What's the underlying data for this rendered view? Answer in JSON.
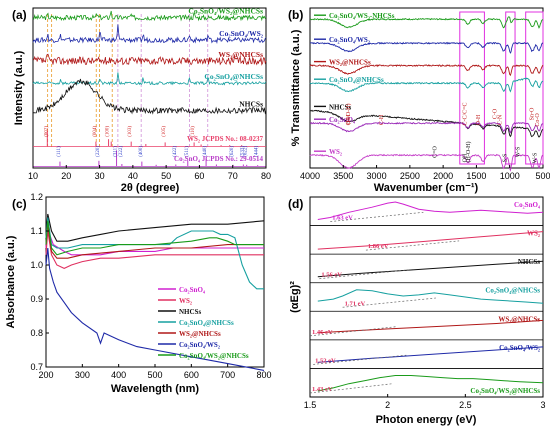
{
  "chart_data": [
    {
      "id": "a",
      "panel_label": "(a)",
      "type": "line",
      "xlabel": "2θ (degree)",
      "ylabel": "Intensity (a.u.)",
      "xlim": [
        10,
        80
      ],
      "xticks": [
        10,
        20,
        30,
        40,
        50,
        60,
        70,
        80
      ],
      "grid": false,
      "series": [
        {
          "name": "Co₂SnO₄/WS₂@NHCSs",
          "color": "#1a9b1a",
          "baseline": 0.94,
          "amp": 0.05,
          "peaks": [
            [
              14.4,
              0.2
            ],
            [
              29.2,
              0.25
            ],
            [
              33.4,
              0.45
            ],
            [
              39.5,
              0.2
            ],
            [
              58.4,
              0.25
            ]
          ]
        },
        {
          "name": "Co₂SnO₄/WS₂",
          "color": "#1f2aa8",
          "baseline": 0.8,
          "amp": 0.05,
          "peaks": [
            [
              14.4,
              0.35
            ],
            [
              18.3,
              0.3
            ],
            [
              30.1,
              0.6
            ],
            [
              35.5,
              1.0
            ],
            [
              43.1,
              0.35
            ],
            [
              57.0,
              0.35
            ],
            [
              62.6,
              0.35
            ]
          ]
        },
        {
          "name": "WS₂@NHCSs",
          "color": "#b01818",
          "baseline": 0.67,
          "amp": 0.08,
          "peaks": [
            [
              14.4,
              0.35
            ],
            [
              33.5,
              0.25
            ],
            [
              39.5,
              0.2
            ],
            [
              58.4,
              0.2
            ]
          ]
        },
        {
          "name": "Co₂SnO₄@NHCSs",
          "color": "#16a0a0",
          "baseline": 0.53,
          "amp": 0.03,
          "peaks": [
            [
              18.3,
              0.3
            ],
            [
              30.1,
              0.35
            ],
            [
              35.5,
              0.7
            ],
            [
              43.1,
              0.35
            ],
            [
              57.0,
              0.3
            ],
            [
              62.6,
              0.35
            ]
          ]
        },
        {
          "name": "NHCSs",
          "color": "#111111",
          "baseline": 0.36,
          "amp": 0.06,
          "hump": [
            24.5,
            6.5,
            0.18
          ]
        },
        {
          "name": "WS₂ JCPDS No.: 08-0237",
          "color": "#e8406a",
          "baseline": 0.22,
          "amp": 0.0
        },
        {
          "name": "Co₂SnO₄ JCPDS No.: 29-0514",
          "color": "#b83cc8",
          "baseline": 0.06,
          "amp": 0.0
        }
      ],
      "reference_WS2": {
        "color": "#e8406a",
        "peaks": [
          [
            14.3,
            1.0
          ],
          [
            28.9,
            0.3
          ],
          [
            32.7,
            0.45
          ],
          [
            33.5,
            0.3
          ],
          [
            39.5,
            0.3
          ],
          [
            43.9,
            0.15
          ],
          [
            49.7,
            0.25
          ],
          [
            58.4,
            0.25
          ],
          [
            60.5,
            0.12
          ],
          [
            66.5,
            0.08
          ],
          [
            69.1,
            0.08
          ],
          [
            72.7,
            0.08
          ]
        ],
        "labels": [
          {
            "x": 14.3,
            "text": "(002)"
          },
          {
            "x": 28.9,
            "text": "(004)"
          },
          {
            "x": 32.7,
            "text": "(100)"
          },
          {
            "x": 39.5,
            "text": "(103)"
          },
          {
            "x": 49.7,
            "text": "(105)"
          },
          {
            "x": 58.4,
            "text": "(110)"
          }
        ]
      },
      "reference_Co2SnO4": {
        "color": "#b83cc8",
        "peaks": [
          [
            18.1,
            0.3
          ],
          [
            29.8,
            0.35
          ],
          [
            35.1,
            1.0
          ],
          [
            36.7,
            0.15
          ],
          [
            42.7,
            0.3
          ],
          [
            47.0,
            0.1
          ],
          [
            52.9,
            0.12
          ],
          [
            56.5,
            0.35
          ],
          [
            62.0,
            0.45
          ],
          [
            65.1,
            0.12
          ],
          [
            70.1,
            0.1
          ],
          [
            73.2,
            0.12
          ],
          [
            74.2,
            0.1
          ],
          [
            77.5,
            0.08
          ]
        ],
        "labels": [
          {
            "x": 18.1,
            "text": "(111)"
          },
          {
            "x": 29.8,
            "text": "(220)"
          },
          {
            "x": 35.1,
            "text": "(311)"
          },
          {
            "x": 36.7,
            "text": "(222)"
          },
          {
            "x": 42.7,
            "text": "(400)"
          },
          {
            "x": 52.9,
            "text": "(422)"
          },
          {
            "x": 56.5,
            "text": "(511)"
          },
          {
            "x": 62.0,
            "text": "(440)"
          },
          {
            "x": 70.1,
            "text": "(620)"
          },
          {
            "x": 73.2,
            "text": "(533)"
          },
          {
            "x": 74.2,
            "text": "(622)"
          },
          {
            "x": 77.5,
            "text": "(444)"
          }
        ]
      },
      "guide_lines": [
        {
          "x": 14.4,
          "color": "#e89a2a"
        },
        {
          "x": 15.6,
          "color": "#e89a2a"
        },
        {
          "x": 29.0,
          "color": "#e89a2a"
        },
        {
          "x": 30.0,
          "color": "#e89a2a"
        },
        {
          "x": 33.8,
          "color": "#e89a2a"
        },
        {
          "x": 35.5,
          "color": "#d090d8"
        },
        {
          "x": 42.5,
          "color": "#d090d8"
        },
        {
          "x": 57.0,
          "color": "#d090d8"
        },
        {
          "x": 62.5,
          "color": "#d090d8"
        }
      ]
    },
    {
      "id": "b",
      "panel_label": "(b)",
      "type": "line",
      "xlabel": "Wavenumber (cm⁻¹)",
      "ylabel": "% Transmittance (a.u.)",
      "xlim": [
        4000,
        500
      ],
      "xticks": [
        4000,
        3500,
        3000,
        2500,
        2000,
        1500,
        1000,
        500
      ],
      "grid": false,
      "series": [
        {
          "name": "Co₂SnO₄/WS₂-NHCSs",
          "color": "#1a9b1a",
          "baseline": 0.93
        },
        {
          "name": "Co₂SnO₄/WS₂",
          "color": "#1f2aa8",
          "baseline": 0.78
        },
        {
          "name": "WS₂@NHCSs",
          "color": "#b01818",
          "baseline": 0.64
        },
        {
          "name": "Co₂SnO₄@NHCSs",
          "color": "#16a0a0",
          "baseline": 0.53
        },
        {
          "name": "NHCSs",
          "color": "#111111",
          "baseline": 0.36
        },
        {
          "name": "Co₂SnO₄",
          "color": "#9a2ab8",
          "baseline": 0.28
        },
        {
          "name": "WS₂",
          "color": "#c43cc8",
          "baseline": 0.08
        }
      ],
      "annotations": [
        {
          "text": "O-H",
          "x": 3400,
          "color": "#c02020"
        },
        {
          "text": "(H-O-H)",
          "x": 3400,
          "color": "#c02020"
        },
        {
          "text": "C-H",
          "x": 2900,
          "color": "#c02020"
        },
        {
          "text": "C-C/C=C",
          "x": 1650,
          "color": "#c02020"
        },
        {
          "text": "O-H",
          "x": 1450,
          "color": "#c02020"
        },
        {
          "text": "C-O",
          "x": 1200,
          "color": "#c02020"
        },
        {
          "text": "C-N",
          "x": 1120,
          "color": "#c02020"
        },
        {
          "text": "Sn-O",
          "x": 640,
          "color": "#c02020"
        },
        {
          "text": "Co-O",
          "x": 560,
          "color": "#c02020"
        },
        {
          "text": "C=O",
          "x": 2100,
          "color": "#111111"
        },
        {
          "text": "OH",
          "x": 1650,
          "color": "#111111"
        },
        {
          "text": "(H-O-H)",
          "x": 1600,
          "color": "#111111"
        },
        {
          "text": "S-S",
          "x": 1050,
          "color": "#111111"
        },
        {
          "text": "W-S",
          "x": 850,
          "color": "#111111"
        },
        {
          "text": "W-S",
          "x": 600,
          "color": "#111111"
        }
      ],
      "highlight_boxes": [
        {
          "x0": 1750,
          "x1": 1380,
          "color": "#e030e0"
        },
        {
          "x0": 1060,
          "x1": 920,
          "color": "#e030e0"
        },
        {
          "x0": 760,
          "x1": 500,
          "color": "#e030e0"
        }
      ]
    },
    {
      "id": "c",
      "panel_label": "(c)",
      "type": "line",
      "xlabel": "Wavelength (nm)",
      "ylabel": "Absorbance (a.u.)",
      "xlim": [
        200,
        800
      ],
      "ylim": [
        0.7,
        1.2
      ],
      "xticks": [
        200,
        300,
        400,
        500,
        600,
        700,
        800
      ],
      "yticks": [
        0.7,
        0.8,
        0.9,
        1.0,
        1.1,
        1.2
      ],
      "grid": false,
      "legend_position": "bottom-right",
      "series": [
        {
          "name": "Co₂SnO₄",
          "color": "#d020d0",
          "x": [
            200,
            205,
            210,
            220,
            235,
            250,
            270,
            300,
            350,
            400,
            450,
            500,
            550,
            600,
            650,
            700,
            800
          ],
          "y": [
            1.05,
            1.14,
            1.09,
            1.06,
            1.05,
            1.04,
            1.03,
            1.03,
            1.03,
            1.04,
            1.04,
            1.04,
            1.05,
            1.05,
            1.05,
            1.05,
            1.05
          ]
        },
        {
          "name": "WS₂",
          "color": "#e03060",
          "x": [
            200,
            205,
            215,
            230,
            250,
            270,
            300,
            350,
            400,
            500,
            600,
            700,
            800
          ],
          "y": [
            1.03,
            1.1,
            1.03,
            1.0,
            0.99,
            1.0,
            1.01,
            1.02,
            1.02,
            1.03,
            1.03,
            1.03,
            1.03
          ]
        },
        {
          "name": "NHCSs",
          "color": "#111111",
          "x": [
            200,
            205,
            215,
            230,
            260,
            300,
            350,
            400,
            500,
            600,
            700,
            800
          ],
          "y": [
            1.09,
            1.15,
            1.1,
            1.07,
            1.07,
            1.08,
            1.09,
            1.1,
            1.11,
            1.12,
            1.12,
            1.13
          ]
        },
        {
          "name": "Co₂SnO₄@NHCSs",
          "color": "#16a0a0",
          "x": [
            200,
            205,
            215,
            230,
            260,
            300,
            400,
            500,
            540,
            560,
            600,
            640,
            660,
            680,
            700,
            720,
            740,
            760,
            780,
            800
          ],
          "y": [
            1.08,
            1.14,
            1.06,
            1.05,
            1.05,
            1.06,
            1.06,
            1.06,
            1.06,
            1.08,
            1.1,
            1.1,
            1.1,
            1.09,
            1.09,
            1.08,
            1.0,
            0.95,
            0.93,
            0.93
          ]
        },
        {
          "name": "WS₂@NHCSs",
          "color": "#b01818",
          "x": [
            200,
            205,
            215,
            230,
            260,
            300,
            400,
            500,
            600,
            700,
            800
          ],
          "y": [
            1.06,
            1.12,
            1.04,
            1.02,
            1.02,
            1.03,
            1.04,
            1.05,
            1.05,
            1.06,
            1.06
          ]
        },
        {
          "name": "Co₂SnO₄/WS₂",
          "color": "#1f2aa8",
          "x": [
            200,
            205,
            210,
            220,
            230,
            250,
            270,
            300,
            340,
            350,
            360,
            400,
            450,
            500,
            600,
            700,
            800
          ],
          "y": [
            1.0,
            1.05,
            0.99,
            0.95,
            0.92,
            0.89,
            0.86,
            0.83,
            0.8,
            0.77,
            0.8,
            0.78,
            0.76,
            0.75,
            0.73,
            0.71,
            0.69
          ]
        },
        {
          "name": "Co₂SnO₄/WS₂@NHCSs",
          "color": "#1a9b1a",
          "x": [
            200,
            205,
            215,
            230,
            260,
            300,
            350,
            400,
            500,
            600,
            650,
            670,
            700,
            720,
            750,
            800
          ],
          "y": [
            1.06,
            1.13,
            1.05,
            1.03,
            1.04,
            1.05,
            1.05,
            1.06,
            1.06,
            1.07,
            1.08,
            1.08,
            1.07,
            1.06,
            1.06,
            1.06
          ]
        }
      ]
    },
    {
      "id": "d",
      "panel_label": "(d)",
      "type": "line",
      "xlabel": "Photon energy (eV)",
      "ylabel": "(αEg)²",
      "xlim": [
        1.5,
        3.0
      ],
      "xticks": [
        1.5,
        2.0,
        2.5,
        3.0
      ],
      "grid": false,
      "series": [
        {
          "name": "Co₂SnO₄",
          "color": "#d020d0",
          "bandgap": "1.63 eV",
          "bandgap_color": "#d020d0",
          "x": [
            1.55,
            1.63,
            1.75,
            1.9,
            2.0,
            2.05,
            2.1,
            2.2,
            2.3,
            2.4,
            2.5,
            2.6,
            2.7,
            2.8,
            2.9,
            3.0
          ],
          "y": [
            0.1,
            0.2,
            0.45,
            0.7,
            0.9,
            0.95,
            0.85,
            0.6,
            0.5,
            0.45,
            0.5,
            0.55,
            0.5,
            0.45,
            0.4,
            0.45
          ]
        },
        {
          "name": "WS₂",
          "color": "#e03060",
          "bandgap": "1.86 eV",
          "bandgap_color": "#e03060",
          "x": [
            1.55,
            1.86,
            2.2,
            2.6,
            3.0
          ],
          "y": [
            0.05,
            0.2,
            0.4,
            0.65,
            0.9
          ]
        },
        {
          "name": "NHCSs",
          "color": "#111111",
          "bandgap": "1.56 eV",
          "bandgap_color": "#e03060",
          "x": [
            1.55,
            1.8,
            2.1,
            2.4,
            2.7,
            3.0
          ],
          "y": [
            0.1,
            0.25,
            0.4,
            0.55,
            0.7,
            0.85
          ]
        },
        {
          "name": "Co₂SnO₄@NHCSs",
          "color": "#16a0a0",
          "bandgap": "1.71 eV",
          "bandgap_color": "#e03060",
          "x": [
            1.55,
            1.65,
            1.71,
            1.8,
            1.9,
            2.0,
            2.1,
            2.2,
            2.3,
            2.4,
            2.5,
            2.6,
            2.7,
            2.8,
            2.9,
            3.0
          ],
          "y": [
            0.3,
            0.4,
            0.55,
            0.85,
            0.8,
            0.65,
            0.55,
            0.6,
            0.7,
            0.6,
            0.5,
            0.4,
            0.35,
            0.3,
            0.25,
            0.2
          ]
        },
        {
          "name": "WS₂@NHCSs",
          "color": "#b01818",
          "bandgap": "1.46 eV",
          "bandgap_color": "#e03060",
          "x": [
            1.55,
            1.9,
            2.3,
            2.7,
            3.0
          ],
          "y": [
            0.15,
            0.3,
            0.45,
            0.6,
            0.75
          ]
        },
        {
          "name": "Co₂SnO₄/WS₂",
          "color": "#1f2aa8",
          "bandgap": "1.52 eV",
          "bandgap_color": "#e03060",
          "x": [
            1.55,
            1.9,
            2.3,
            2.7,
            3.0
          ],
          "y": [
            0.1,
            0.3,
            0.5,
            0.7,
            0.85
          ]
        },
        {
          "name": "Co₂SnO₄/WS₂@NHCSs",
          "color": "#1a9b1a",
          "bandgap": "1.43 eV",
          "bandgap_color": "#e03060",
          "x": [
            1.55,
            1.65,
            1.75,
            1.85,
            1.95,
            2.05,
            2.15,
            2.25,
            2.35,
            2.45,
            2.55,
            2.65,
            2.75,
            2.85,
            3.0
          ],
          "y": [
            0.1,
            0.25,
            0.45,
            0.6,
            0.75,
            0.85,
            0.85,
            0.8,
            0.75,
            0.7,
            0.7,
            0.65,
            0.6,
            0.55,
            0.5
          ]
        }
      ]
    }
  ]
}
